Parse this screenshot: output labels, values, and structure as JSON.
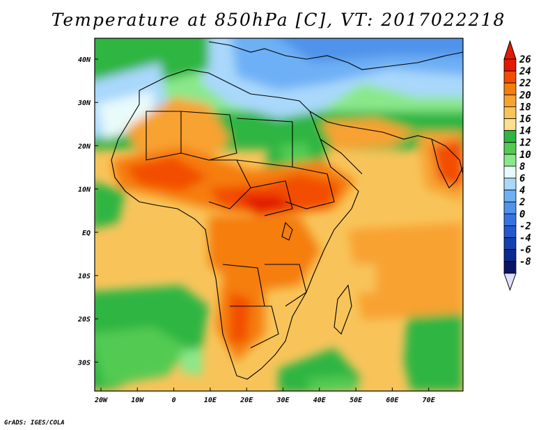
{
  "title": "Temperature at 850hPa [C], VT: 2017022218",
  "credit": "GrADS: IGES/COLA",
  "map": {
    "lon_labels": [
      "20W",
      "10W",
      "0",
      "10E",
      "20E",
      "30E",
      "40E",
      "50E",
      "60E",
      "70E"
    ],
    "lat_labels": [
      "40N",
      "30N",
      "20N",
      "10N",
      "EQ",
      "10S",
      "20S",
      "30S"
    ]
  },
  "colorbar": {
    "levels": [
      "26",
      "24",
      "22",
      "20",
      "18",
      "16",
      "14",
      "12",
      "10",
      "8",
      "6",
      "4",
      "2",
      "0",
      "-2",
      "-4",
      "-6",
      "-8"
    ],
    "colors": [
      "#e31a00",
      "#f24d00",
      "#f57e0a",
      "#f8a232",
      "#f8c45a",
      "#fbe08e",
      "#2fb542",
      "#52cb52",
      "#8ae88a",
      "#e8fafa",
      "#a9d8fb",
      "#6eb0f5",
      "#4f93ea",
      "#3574e0",
      "#2458cc",
      "#1540b0",
      "#0a2a8e",
      "#0a1566"
    ],
    "top_color": "#e31a00",
    "bottom_color": "#e0e0ff"
  }
}
